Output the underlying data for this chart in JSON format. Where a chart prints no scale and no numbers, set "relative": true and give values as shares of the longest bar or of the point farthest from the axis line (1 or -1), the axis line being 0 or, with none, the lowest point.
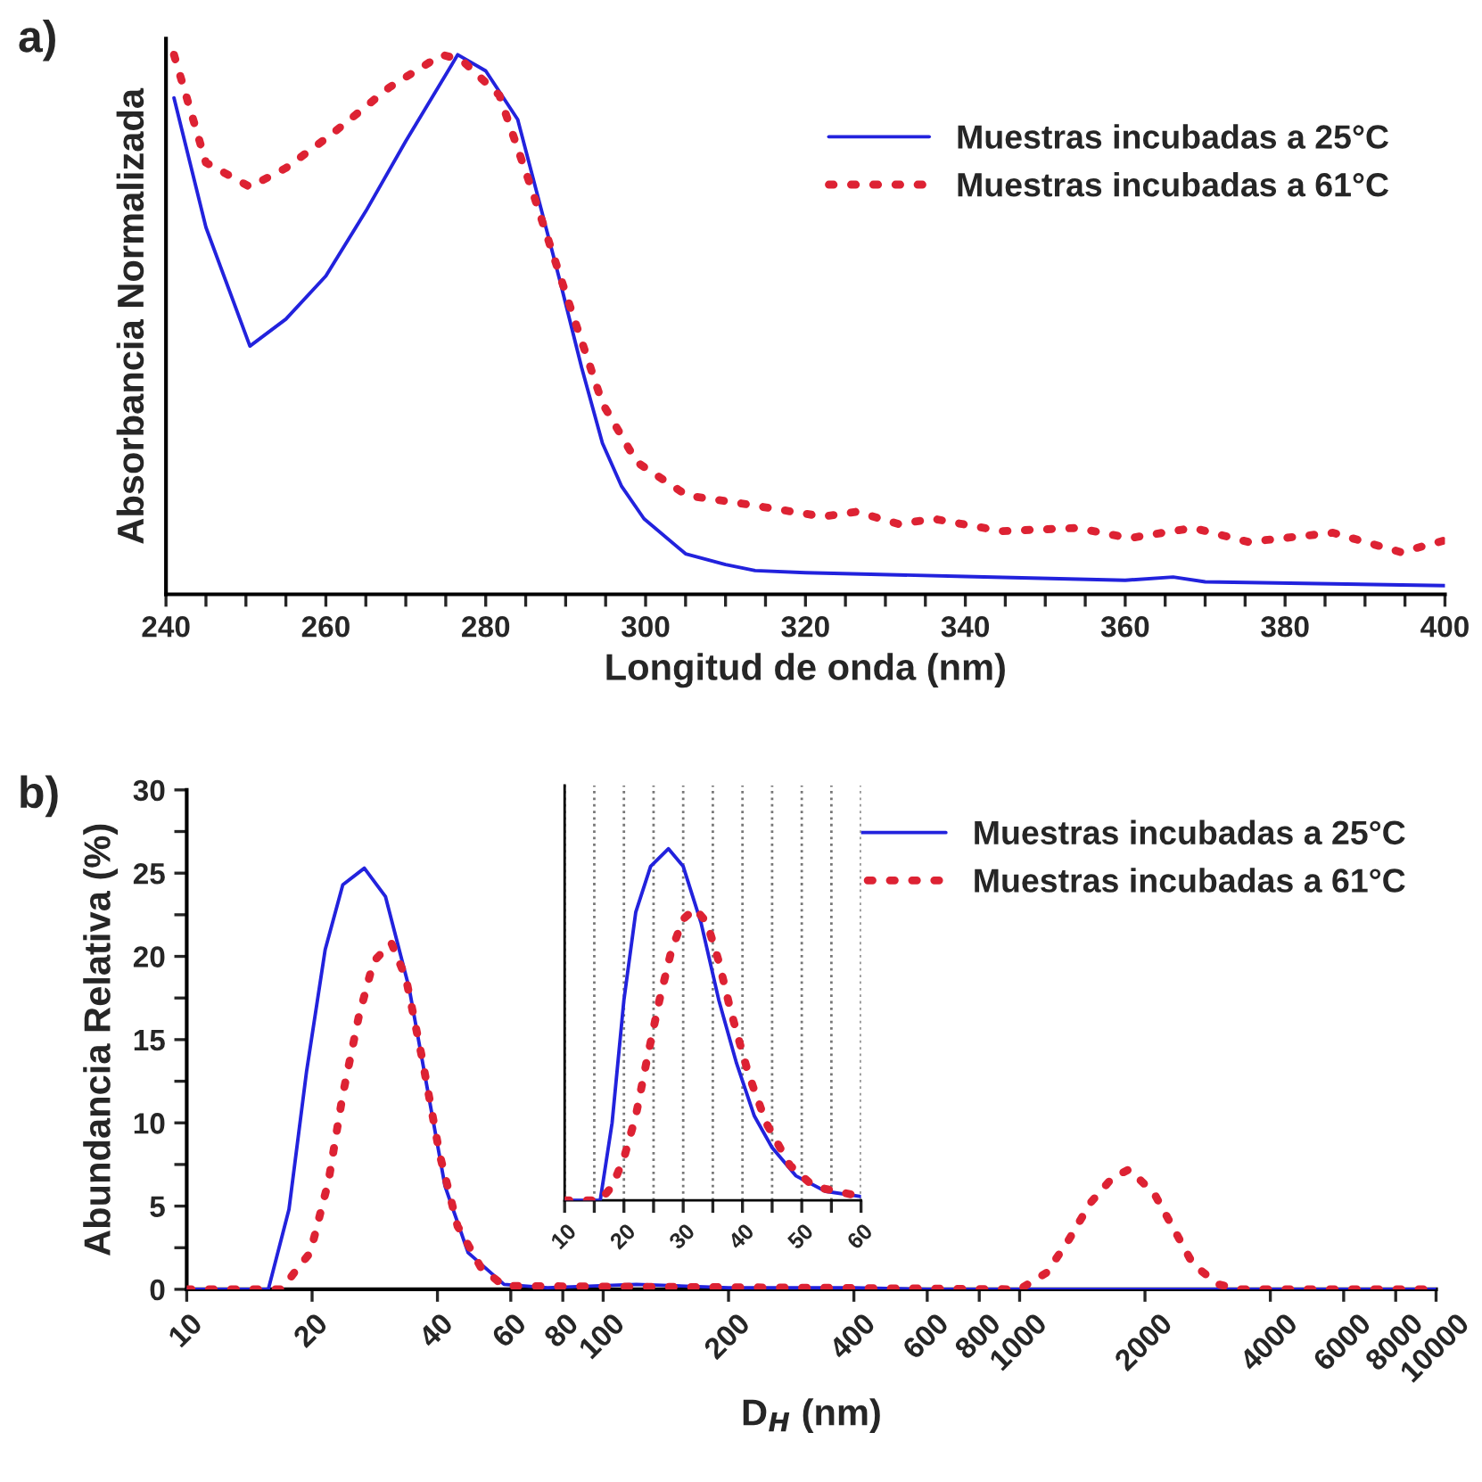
{
  "chart_data": [
    {
      "type": "line",
      "relative": true,
      "xlabel": "Longitud de onda (nm)",
      "ylabel": "Absorbancia Normalizada",
      "annotations": [
        "a)"
      ],
      "xlim": [
        240,
        400
      ],
      "xticks": [
        240,
        {
          "value": 245,
          "label": null
        },
        {
          "value": 250,
          "label": null
        },
        {
          "value": 255,
          "label": null
        },
        260,
        {
          "value": 265,
          "label": null
        },
        {
          "value": 270,
          "label": null
        },
        {
          "value": 275,
          "label": null
        },
        280,
        {
          "value": 285,
          "label": null
        },
        {
          "value": 290,
          "label": null
        },
        {
          "value": 295,
          "label": null
        },
        300,
        {
          "value": 305,
          "label": null
        },
        {
          "value": 310,
          "label": null
        },
        {
          "value": 315,
          "label": null
        },
        320,
        {
          "value": 325,
          "label": null
        },
        {
          "value": 330,
          "label": null
        },
        {
          "value": 335,
          "label": null
        },
        340,
        {
          "value": 345,
          "label": null
        },
        {
          "value": 350,
          "label": null
        },
        {
          "value": 355,
          "label": null
        },
        360,
        {
          "value": 365,
          "label": null
        },
        {
          "value": 370,
          "label": null
        },
        {
          "value": 375,
          "label": null
        },
        380,
        {
          "value": 385,
          "label": null
        },
        {
          "value": 390,
          "label": null
        },
        {
          "value": 395,
          "label": null
        },
        400
      ],
      "tick_labels": "x",
      "legend": "top right",
      "grid": false,
      "series": [
        {
          "name": "Muestras incubadas a 25°C",
          "color": "#2222dd",
          "line_style": "solid",
          "x": [
            241,
            245,
            250.5,
            255,
            260,
            265,
            270,
            276.5,
            280,
            284,
            287,
            289.3,
            292,
            294.6,
            297,
            299.8,
            305,
            310,
            313.7,
            320,
            340,
            360,
            366,
            370,
            400
          ],
          "values": [
            0.92,
            0.68,
            0.46,
            0.51,
            0.59,
            0.71,
            0.84,
            1.0,
            0.97,
            0.88,
            0.71,
            0.58,
            0.42,
            0.28,
            0.2,
            0.14,
            0.075,
            0.055,
            0.044,
            0.04,
            0.033,
            0.026,
            0.032,
            0.023,
            0.016
          ]
        },
        {
          "name": "Muestras incubadas a 61°C",
          "color": "#dd2233",
          "line_style": "dotted",
          "x": [
            241,
            245,
            250.5,
            255,
            260.5,
            268,
            274.5,
            277,
            281.7,
            286,
            290.4,
            294.6,
            298.9,
            305.2,
            311.7,
            315.9,
            322.2,
            326.4,
            331.7,
            336,
            344.5,
            354,
            360.5,
            368.5,
            375.4,
            386,
            394.5,
            400
          ],
          "values": [
            1.0,
            0.8,
            0.755,
            0.79,
            0.85,
            0.94,
            1.0,
            0.99,
            0.925,
            0.74,
            0.54,
            0.354,
            0.245,
            0.183,
            0.169,
            0.159,
            0.144,
            0.153,
            0.13,
            0.14,
            0.117,
            0.123,
            0.104,
            0.123,
            0.097,
            0.114,
            0.078,
            0.1
          ]
        }
      ]
    },
    {
      "type": "line",
      "xlabel": "D$_{H}$ (nm)",
      "ylabel": "Abundancia Relativa (%)",
      "annotations": [
        "b)"
      ],
      "log": "x",
      "xlim": [
        10,
        10000
      ],
      "xticks": [
        10,
        20,
        40,
        60,
        80,
        100,
        200,
        400,
        600,
        800,
        1000,
        2000,
        4000,
        6000,
        8000,
        10000
      ],
      "ylim": [
        0,
        30
      ],
      "yticks": [
        0,
        {
          "value": 2.5,
          "label": null
        },
        5,
        {
          "value": 7.5,
          "label": null
        },
        10,
        {
          "value": 12.5,
          "label": null
        },
        15,
        {
          "value": 17.5,
          "label": null
        },
        20,
        {
          "value": 22.5,
          "label": null
        },
        25,
        {
          "value": 27.5,
          "label": null
        },
        30
      ],
      "legend": "top right",
      "grid": false,
      "series": [
        {
          "name": "Muestras incubadas a 25°C",
          "color": "#2222dd",
          "line_style": "solid",
          "x": [
            10,
            15.7,
            17.6,
            19.4,
            21.5,
            23.7,
            26.7,
            30.0,
            34.2,
            37.8,
            41.7,
            47.4,
            57.8,
            73.5,
            120,
            200,
            400,
            600,
            10000
          ],
          "values": [
            0,
            0,
            4.8,
            13.1,
            20.4,
            24.3,
            25.3,
            23.6,
            18.1,
            12.1,
            6.2,
            2.2,
            0.3,
            0.1,
            0.3,
            0.1,
            0.1,
            0,
            0
          ]
        },
        {
          "name": "Muestras incubadas a 61°C",
          "color": "#dd2233",
          "line_style": "dotted",
          "x": [
            10,
            16.9,
            18.5,
            19.8,
            21.9,
            23.7,
            25.9,
            28.1,
            31.0,
            33.6,
            36.6,
            40.5,
            44.7,
            50.9,
            57.8,
            300,
            1000,
            1160,
            1300,
            1480,
            1670,
            1830,
            2100,
            2360,
            2610,
            3000,
            3360,
            10000
          ],
          "values": [
            0,
            0,
            1.3,
            2.2,
            6.5,
            11.7,
            16.4,
            19.7,
            20.8,
            18.7,
            14.1,
            8.1,
            3.8,
            1.3,
            0.2,
            0.1,
            0,
            1.0,
            2.8,
            5.2,
            6.7,
            7.2,
            5.8,
            3.5,
            1.5,
            0.3,
            0,
            0
          ]
        }
      ]
    },
    {
      "type": "line",
      "relative": true,
      "xlim": [
        10,
        60
      ],
      "xticks": [
        10,
        {
          "value": 15,
          "label": null
        },
        20,
        {
          "value": 25,
          "label": null
        },
        30,
        {
          "value": 35,
          "label": null
        },
        40,
        {
          "value": 45,
          "label": null
        },
        50,
        {
          "value": 55,
          "label": null
        },
        60
      ],
      "tick_labels": "x",
      "grid": "x",
      "series": [
        {
          "color": "#2222dd",
          "line_style": "solid",
          "x": [
            10,
            16,
            18,
            20,
            22,
            24.5,
            27.5,
            30,
            33,
            36,
            39,
            42,
            45,
            49,
            54,
            60
          ],
          "values": [
            0,
            0,
            0.22,
            0.57,
            0.82,
            0.95,
            1.0,
            0.95,
            0.79,
            0.57,
            0.39,
            0.24,
            0.15,
            0.07,
            0.026,
            0.011
          ]
        },
        {
          "color": "#dd2233",
          "line_style": "dotted",
          "x": [
            10,
            16,
            18,
            20,
            22,
            24,
            26,
            28,
            30,
            32,
            34,
            36,
            38,
            41,
            44,
            48,
            52,
            60
          ],
          "values": [
            0,
            0,
            0.04,
            0.12,
            0.24,
            0.41,
            0.57,
            0.71,
            0.8,
            0.83,
            0.79,
            0.68,
            0.54,
            0.36,
            0.22,
            0.1,
            0.04,
            0.011
          ]
        }
      ]
    }
  ]
}
